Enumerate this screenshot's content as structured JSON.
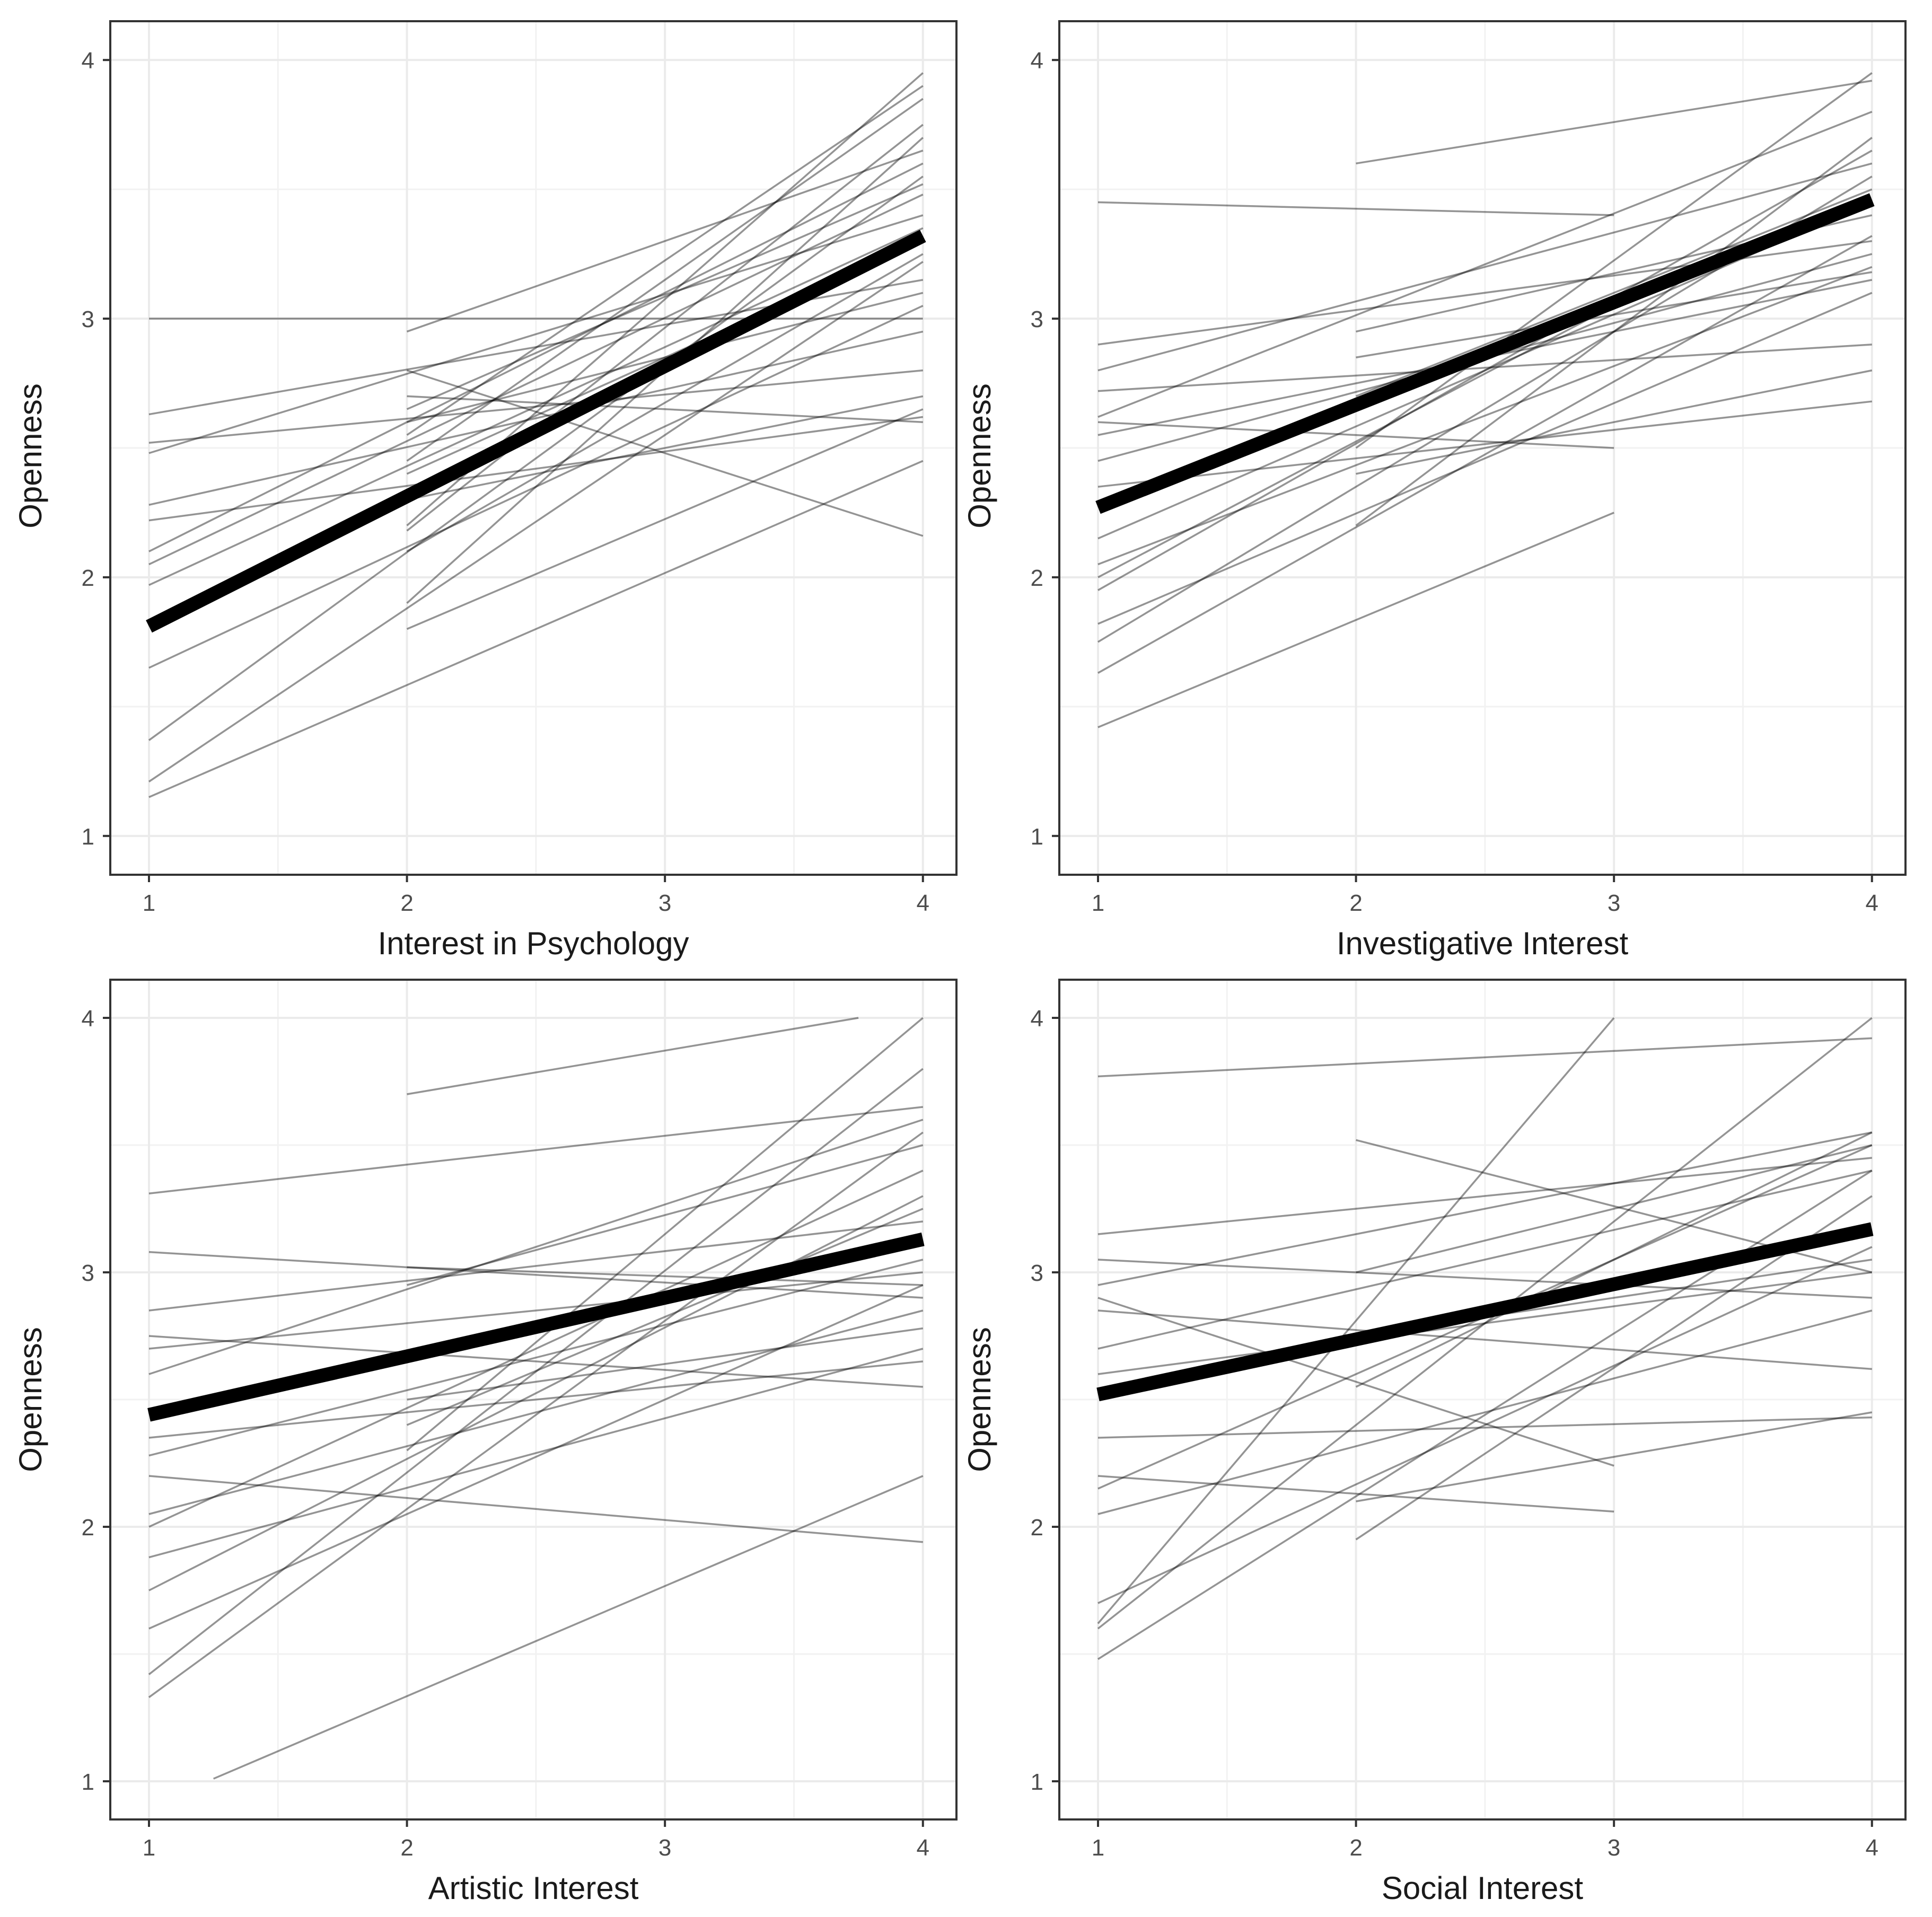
{
  "chart_data": [
    {
      "type": "line",
      "position": "top-left",
      "xlabel": "Interest in Psychology",
      "ylabel": "Openness",
      "xlim": [
        0.85,
        4.13
      ],
      "ylim": [
        0.85,
        4.15
      ],
      "x_ticks": [
        "1",
        "2",
        "3",
        "4"
      ],
      "y_ticks": [
        "1",
        "2",
        "3",
        "4"
      ],
      "grid": true,
      "fitted_line": {
        "x": [
          1,
          4
        ],
        "y": [
          1.81,
          3.32
        ]
      },
      "individual_lines": [
        {
          "x": [
            1,
            4
          ],
          "y": [
            1.15,
            2.45
          ]
        },
        {
          "x": [
            1,
            4
          ],
          "y": [
            1.21,
            3.22
          ]
        },
        {
          "x": [
            1,
            4
          ],
          "y": [
            1.37,
            3.55
          ]
        },
        {
          "x": [
            1,
            4
          ],
          "y": [
            1.65,
            3.05
          ]
        },
        {
          "x": [
            1,
            4
          ],
          "y": [
            1.97,
            3.35
          ]
        },
        {
          "x": [
            1,
            4
          ],
          "y": [
            2.05,
            3.48
          ]
        },
        {
          "x": [
            1,
            4
          ],
          "y": [
            2.1,
            3.6
          ]
        },
        {
          "x": [
            1,
            4
          ],
          "y": [
            2.22,
            2.62
          ]
        },
        {
          "x": [
            1,
            4
          ],
          "y": [
            2.28,
            2.95
          ]
        },
        {
          "x": [
            1,
            4
          ],
          "y": [
            2.48,
            3.4
          ]
        },
        {
          "x": [
            1,
            4
          ],
          "y": [
            2.52,
            2.8
          ]
        },
        {
          "x": [
            1,
            4
          ],
          "y": [
            2.63,
            3.15
          ]
        },
        {
          "x": [
            1,
            4
          ],
          "y": [
            3.0,
            3.0
          ]
        },
        {
          "x": [
            2,
            4
          ],
          "y": [
            1.8,
            2.65
          ]
        },
        {
          "x": [
            2,
            4
          ],
          "y": [
            1.9,
            3.7
          ]
        },
        {
          "x": [
            2,
            4
          ],
          "y": [
            2.1,
            3.25
          ]
        },
        {
          "x": [
            2,
            4
          ],
          "y": [
            2.2,
            3.95
          ]
        },
        {
          "x": [
            2,
            4
          ],
          "y": [
            2.3,
            2.7
          ]
        },
        {
          "x": [
            2,
            4
          ],
          "y": [
            2.45,
            3.85
          ]
        },
        {
          "x": [
            2,
            4
          ],
          "y": [
            2.6,
            3.1
          ]
        },
        {
          "x": [
            2,
            4
          ],
          "y": [
            2.65,
            3.52
          ]
        },
        {
          "x": [
            2,
            4
          ],
          "y": [
            2.8,
            2.16
          ]
        },
        {
          "x": [
            2,
            4
          ],
          "y": [
            2.95,
            3.65
          ]
        },
        {
          "x": [
            2,
            4
          ],
          "y": [
            2.18,
            3.75
          ]
        },
        {
          "x": [
            2,
            4
          ],
          "y": [
            2.4,
            3.3
          ]
        },
        {
          "x": [
            2,
            4
          ],
          "y": [
            2.55,
            3.9
          ]
        },
        {
          "x": [
            2,
            4
          ],
          "y": [
            2.7,
            2.6
          ]
        }
      ]
    },
    {
      "type": "line",
      "position": "top-right",
      "xlabel": "Investigative Interest",
      "ylabel": "Openness",
      "xlim": [
        0.85,
        4.13
      ],
      "ylim": [
        0.85,
        4.15
      ],
      "x_ticks": [
        "1",
        "2",
        "3",
        "4"
      ],
      "y_ticks": [
        "1",
        "2",
        "3",
        "4"
      ],
      "grid": true,
      "fitted_line": {
        "x": [
          1,
          4
        ],
        "y": [
          2.27,
          3.46
        ]
      },
      "individual_lines": [
        {
          "x": [
            1,
            3
          ],
          "y": [
            1.42,
            2.25
          ]
        },
        {
          "x": [
            1,
            4
          ],
          "y": [
            1.63,
            3.32
          ]
        },
        {
          "x": [
            1,
            4
          ],
          "y": [
            1.75,
            3.55
          ]
        },
        {
          "x": [
            1,
            4
          ],
          "y": [
            1.82,
            3.1
          ]
        },
        {
          "x": [
            1,
            4
          ],
          "y": [
            1.95,
            3.65
          ]
        },
        {
          "x": [
            1,
            4
          ],
          "y": [
            2.05,
            3.2
          ]
        },
        {
          "x": [
            1,
            4
          ],
          "y": [
            2.15,
            3.45
          ]
        },
        {
          "x": [
            1,
            4
          ],
          "y": [
            2.35,
            2.68
          ]
        },
        {
          "x": [
            1,
            4
          ],
          "y": [
            2.45,
            3.25
          ]
        },
        {
          "x": [
            1,
            4
          ],
          "y": [
            2.55,
            3.15
          ]
        },
        {
          "x": [
            1,
            4
          ],
          "y": [
            2.62,
            3.8
          ]
        },
        {
          "x": [
            1,
            4
          ],
          "y": [
            2.72,
            2.9
          ]
        },
        {
          "x": [
            1,
            4
          ],
          "y": [
            2.8,
            3.6
          ]
        },
        {
          "x": [
            1,
            4
          ],
          "y": [
            2.9,
            3.3
          ]
        },
        {
          "x": [
            1,
            3
          ],
          "y": [
            3.45,
            3.4
          ]
        },
        {
          "x": [
            2,
            4
          ],
          "y": [
            2.2,
            3.7
          ]
        },
        {
          "x": [
            2,
            4
          ],
          "y": [
            2.4,
            2.8
          ]
        },
        {
          "x": [
            2,
            4
          ],
          "y": [
            2.5,
            3.95
          ]
        },
        {
          "x": [
            2,
            4
          ],
          "y": [
            2.7,
            3.5
          ]
        },
        {
          "x": [
            2,
            4
          ],
          "y": [
            2.85,
            3.18
          ]
        },
        {
          "x": [
            2,
            4
          ],
          "y": [
            2.95,
            3.4
          ]
        },
        {
          "x": [
            2,
            4
          ],
          "y": [
            3.6,
            3.92
          ]
        },
        {
          "x": [
            1,
            3
          ],
          "y": [
            2.0,
            3.05
          ]
        },
        {
          "x": [
            1,
            3
          ],
          "y": [
            2.6,
            2.5
          ]
        }
      ]
    },
    {
      "type": "line",
      "position": "bottom-left",
      "xlabel": "Artistic Interest",
      "ylabel": "Openness",
      "xlim": [
        0.85,
        4.13
      ],
      "ylim": [
        0.85,
        4.15
      ],
      "x_ticks": [
        "1",
        "2",
        "3",
        "4"
      ],
      "y_ticks": [
        "1",
        "2",
        "3",
        "4"
      ],
      "grid": true,
      "fitted_line": {
        "x": [
          1,
          4
        ],
        "y": [
          2.44,
          3.13
        ]
      },
      "individual_lines": [
        {
          "x": [
            1.25,
            4
          ],
          "y": [
            1.01,
            2.2
          ]
        },
        {
          "x": [
            1,
            4
          ],
          "y": [
            1.33,
            3.55
          ]
        },
        {
          "x": [
            1,
            4
          ],
          "y": [
            1.42,
            3.8
          ]
        },
        {
          "x": [
            1,
            4
          ],
          "y": [
            1.6,
            2.95
          ]
        },
        {
          "x": [
            1,
            4
          ],
          "y": [
            1.75,
            3.3
          ]
        },
        {
          "x": [
            1,
            4
          ],
          "y": [
            1.88,
            2.7
          ]
        },
        {
          "x": [
            1,
            4
          ],
          "y": [
            2.0,
            3.4
          ]
        },
        {
          "x": [
            1,
            4
          ],
          "y": [
            2.05,
            2.85
          ]
        },
        {
          "x": [
            1,
            4
          ],
          "y": [
            2.2,
            1.94
          ]
        },
        {
          "x": [
            1,
            4
          ],
          "y": [
            2.28,
            3.05
          ]
        },
        {
          "x": [
            1,
            4
          ],
          "y": [
            2.35,
            2.65
          ]
        },
        {
          "x": [
            1,
            4
          ],
          "y": [
            2.6,
            3.6
          ]
        },
        {
          "x": [
            1,
            4
          ],
          "y": [
            2.7,
            3.0
          ]
        },
        {
          "x": [
            1,
            4
          ],
          "y": [
            2.75,
            2.55
          ]
        },
        {
          "x": [
            1,
            4
          ],
          "y": [
            2.85,
            3.2
          ]
        },
        {
          "x": [
            1,
            4
          ],
          "y": [
            3.08,
            2.9
          ]
        },
        {
          "x": [
            1,
            4
          ],
          "y": [
            3.31,
            3.65
          ]
        },
        {
          "x": [
            2,
            4
          ],
          "y": [
            2.3,
            4.0
          ]
        },
        {
          "x": [
            2,
            4
          ],
          "y": [
            2.4,
            3.25
          ]
        },
        {
          "x": [
            2,
            4
          ],
          "y": [
            2.5,
            2.78
          ]
        },
        {
          "x": [
            2,
            4
          ],
          "y": [
            2.95,
            3.5
          ]
        },
        {
          "x": [
            2,
            4
          ],
          "y": [
            3.02,
            2.95
          ]
        },
        {
          "x": [
            2,
            3.75
          ],
          "y": [
            3.7,
            4.0
          ]
        }
      ]
    },
    {
      "type": "line",
      "position": "bottom-right",
      "xlabel": "Social Interest",
      "ylabel": "Openness",
      "xlim": [
        0.85,
        4.13
      ],
      "ylim": [
        0.85,
        4.15
      ],
      "x_ticks": [
        "1",
        "2",
        "3",
        "4"
      ],
      "y_ticks": [
        "1",
        "2",
        "3",
        "4"
      ],
      "grid": true,
      "fitted_line": {
        "x": [
          1,
          4
        ],
        "y": [
          2.52,
          3.17
        ]
      },
      "individual_lines": [
        {
          "x": [
            1,
            4
          ],
          "y": [
            1.48,
            3.4
          ]
        },
        {
          "x": [
            1,
            4
          ],
          "y": [
            1.6,
            4.0
          ]
        },
        {
          "x": [
            1,
            4
          ],
          "y": [
            1.7,
            3.1
          ]
        },
        {
          "x": [
            1,
            3
          ],
          "y": [
            1.62,
            4.0
          ]
        },
        {
          "x": [
            1,
            4
          ],
          "y": [
            2.05,
            2.85
          ]
        },
        {
          "x": [
            1,
            4
          ],
          "y": [
            2.15,
            3.5
          ]
        },
        {
          "x": [
            1,
            3
          ],
          "y": [
            2.2,
            2.06
          ]
        },
        {
          "x": [
            1,
            4
          ],
          "y": [
            2.35,
            2.43
          ]
        },
        {
          "x": [
            1,
            4
          ],
          "y": [
            2.6,
            3.0
          ]
        },
        {
          "x": [
            1,
            4
          ],
          "y": [
            2.7,
            3.4
          ]
        },
        {
          "x": [
            1,
            4
          ],
          "y": [
            2.85,
            2.62
          ]
        },
        {
          "x": [
            1,
            4
          ],
          "y": [
            2.95,
            3.55
          ]
        },
        {
          "x": [
            1,
            4
          ],
          "y": [
            3.05,
            2.9
          ]
        },
        {
          "x": [
            1,
            4
          ],
          "y": [
            3.15,
            3.45
          ]
        },
        {
          "x": [
            1,
            4
          ],
          "y": [
            3.77,
            3.92
          ]
        },
        {
          "x": [
            2,
            4
          ],
          "y": [
            1.95,
            3.3
          ]
        },
        {
          "x": [
            2,
            4
          ],
          "y": [
            2.1,
            2.45
          ]
        },
        {
          "x": [
            2,
            4
          ],
          "y": [
            2.55,
            3.55
          ]
        },
        {
          "x": [
            2,
            4
          ],
          "y": [
            2.75,
            3.05
          ]
        },
        {
          "x": [
            2,
            4
          ],
          "y": [
            3.0,
            3.5
          ]
        },
        {
          "x": [
            2,
            4
          ],
          "y": [
            3.52,
            3.0
          ]
        },
        {
          "x": [
            1,
            3
          ],
          "y": [
            2.9,
            2.24
          ]
        }
      ]
    }
  ]
}
